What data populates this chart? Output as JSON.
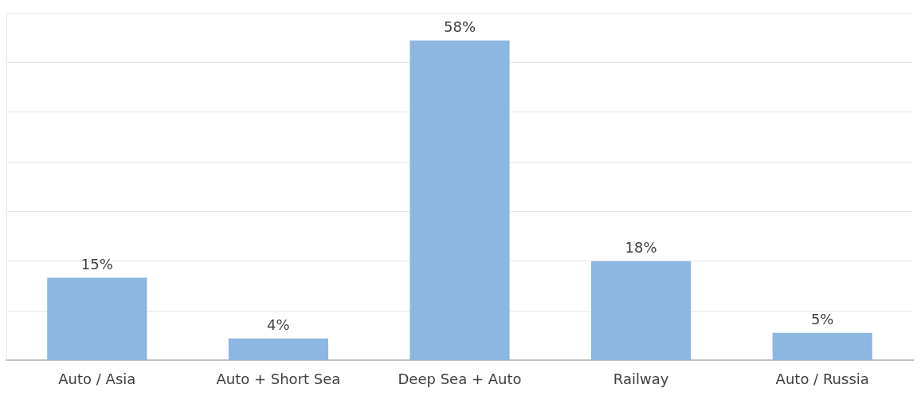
{
  "chart_data": {
    "type": "bar",
    "categories": [
      "Auto / Asia",
      "Auto + Short Sea",
      "Deep Sea + Auto",
      "Railway",
      "Auto / Russia"
    ],
    "values": [
      15,
      4,
      58,
      18,
      5
    ],
    "value_labels": [
      "15%",
      "4%",
      "58%",
      "18%",
      "5%"
    ],
    "color": "#8cb7e1",
    "ylim": [
      0,
      63
    ],
    "yticks": [
      {
        "value": 0,
        "label": null
      },
      {
        "value": 9,
        "label": null
      },
      {
        "value": 18,
        "label": null
      },
      {
        "value": 27,
        "label": null
      },
      {
        "value": 36,
        "label": null
      },
      {
        "value": 45,
        "label": null
      },
      {
        "value": 54,
        "label": null
      },
      {
        "value": 63,
        "label": null
      }
    ],
    "grid": "y",
    "tick_labels": "x",
    "legend": false
  }
}
